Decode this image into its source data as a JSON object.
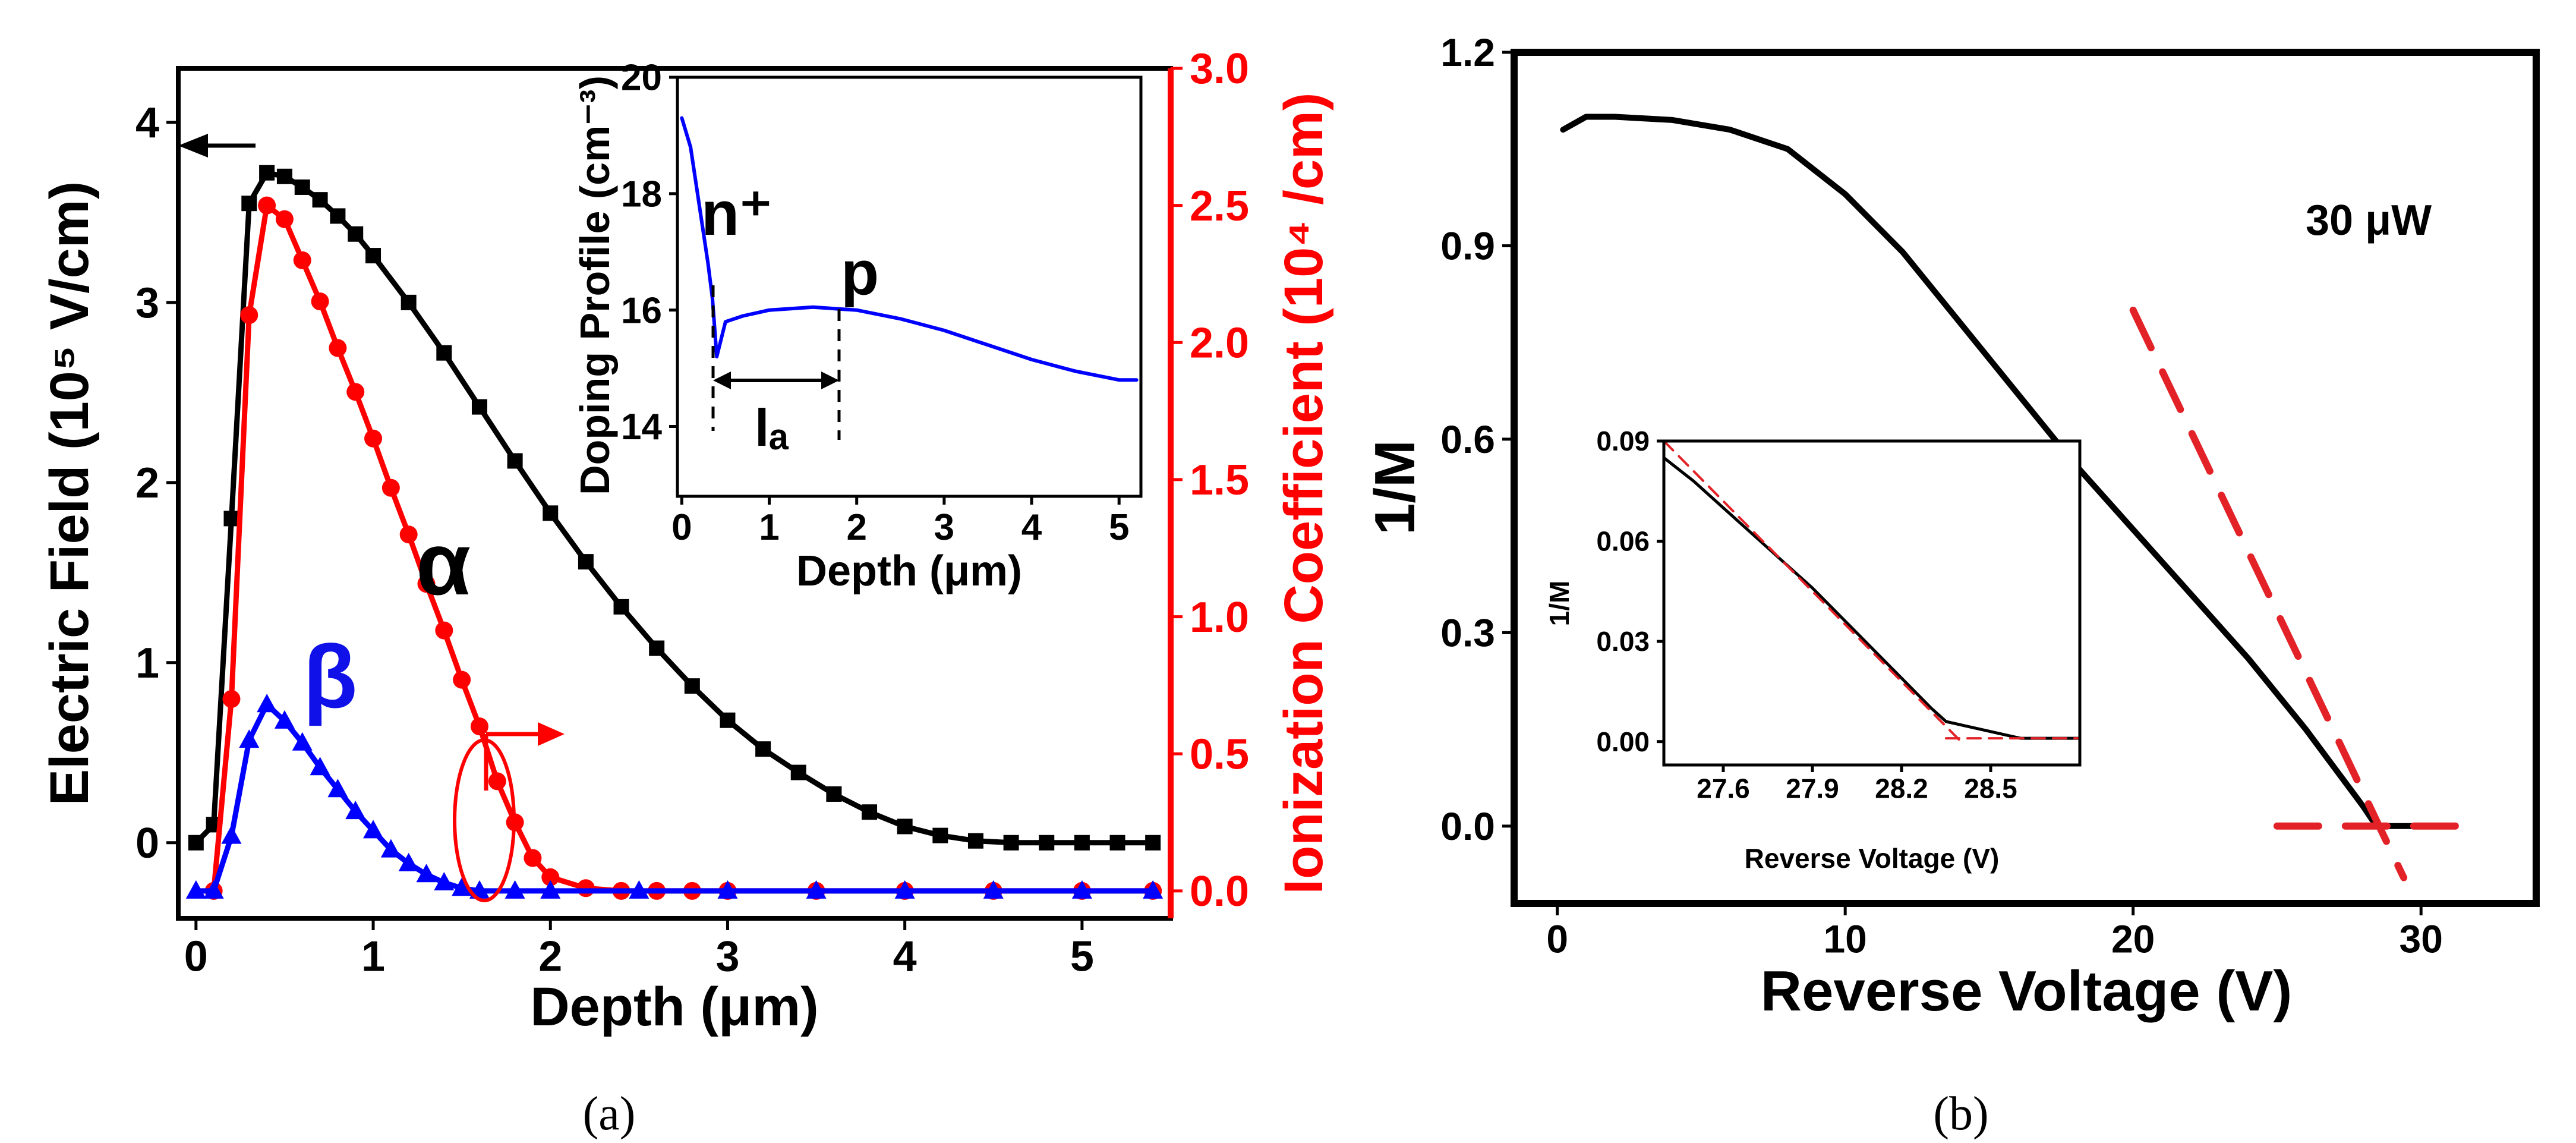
{
  "chart_data": [
    {
      "id": "a",
      "type": "line",
      "caption": "(a)",
      "xlabel": "Depth (μm)",
      "ylabel_left": "Electric Field (10⁵ V/cm)",
      "ylabel_right": "Ionization Coefficient (10⁴ /cm)",
      "xlim": [
        -0.1,
        5.5
      ],
      "ylim_left": [
        -0.42,
        4.3
      ],
      "ylim_right": [
        -0.1,
        3.0
      ],
      "xticks": [
        "0",
        "1",
        "2",
        "3",
        "4",
        "5"
      ],
      "yticks_left": [
        "0",
        "1",
        "2",
        "3",
        "4"
      ],
      "yticks_right": [
        "0.0",
        "0.5",
        "1.0",
        "1.5",
        "2.0",
        "2.5",
        "3.0"
      ],
      "annotations": [
        "α",
        "β"
      ],
      "series": [
        {
          "name": "Electric Field",
          "axis": "left",
          "color": "#000000",
          "marker": "square",
          "x": [
            0,
            0.1,
            0.2,
            0.3,
            0.4,
            0.5,
            0.6,
            0.7,
            0.8,
            0.9,
            1.0,
            1.2,
            1.4,
            1.6,
            1.8,
            2.0,
            2.2,
            2.4,
            2.6,
            2.8,
            3.0,
            3.2,
            3.4,
            3.6,
            3.8,
            4.0,
            4.2,
            4.4,
            4.6,
            4.8,
            5.0,
            5.2,
            5.4
          ],
          "values": [
            0.0,
            0.1,
            1.8,
            3.55,
            3.72,
            3.7,
            3.64,
            3.57,
            3.48,
            3.38,
            3.26,
            3.0,
            2.72,
            2.42,
            2.12,
            1.83,
            1.56,
            1.31,
            1.08,
            0.87,
            0.68,
            0.52,
            0.39,
            0.27,
            0.17,
            0.09,
            0.04,
            0.01,
            0.0,
            0.0,
            0.0,
            0.0,
            0.0
          ]
        },
        {
          "name": "α",
          "axis": "right",
          "color": "#ff0000",
          "marker": "circle",
          "x": [
            0.1,
            0.2,
            0.3,
            0.4,
            0.5,
            0.6,
            0.7,
            0.8,
            0.9,
            1.0,
            1.1,
            1.2,
            1.3,
            1.4,
            1.5,
            1.6,
            1.7,
            1.8,
            1.9,
            2.0,
            2.2,
            2.4,
            2.6,
            2.8,
            3.0,
            3.5,
            4.0,
            4.5,
            5.0,
            5.4
          ],
          "values": [
            0.0,
            0.7,
            2.1,
            2.5,
            2.45,
            2.3,
            2.15,
            1.98,
            1.82,
            1.65,
            1.47,
            1.3,
            1.12,
            0.95,
            0.77,
            0.6,
            0.4,
            0.25,
            0.12,
            0.05,
            0.01,
            0.0,
            0.0,
            0.0,
            0.0,
            0.0,
            0.0,
            0.0,
            0.0,
            0.0
          ]
        },
        {
          "name": "β",
          "axis": "right",
          "color": "#0000ff",
          "marker": "triangle",
          "x": [
            0,
            0.1,
            0.2,
            0.3,
            0.4,
            0.5,
            0.6,
            0.7,
            0.8,
            0.9,
            1.0,
            1.1,
            1.2,
            1.3,
            1.4,
            1.5,
            1.6,
            1.8,
            2.0,
            2.5,
            3.0,
            3.5,
            4.0,
            4.5,
            5.0,
            5.4
          ],
          "values": [
            0.0,
            0.0,
            0.2,
            0.55,
            0.68,
            0.62,
            0.54,
            0.45,
            0.37,
            0.29,
            0.22,
            0.15,
            0.1,
            0.06,
            0.03,
            0.01,
            0.0,
            0.0,
            0.0,
            0.0,
            0.0,
            0.0,
            0.0,
            0.0,
            0.0,
            0.0
          ]
        }
      ],
      "inset": {
        "type": "line",
        "xlabel": "Depth (μm)",
        "ylabel": "Doping Profile (cm⁻³)",
        "xlim": [
          -0.05,
          5.25
        ],
        "ylim": [
          12.8,
          20.0
        ],
        "xticks": [
          "0",
          "1",
          "2",
          "3",
          "4",
          "5"
        ],
        "yticks": [
          "14",
          "16",
          "18",
          "20"
        ],
        "labels": {
          "n_plus": "n⁺",
          "p": "p",
          "la": "lₐ"
        },
        "series": [
          {
            "name": "Doping Profile",
            "color": "#0000ff",
            "x": [
              0,
              0.1,
              0.2,
              0.3,
              0.35,
              0.4,
              0.5,
              0.7,
              1.0,
              1.5,
              2.0,
              2.5,
              3.0,
              3.5,
              4.0,
              4.5,
              5.0,
              5.2
            ],
            "values": [
              19.3,
              18.8,
              17.8,
              16.8,
              16.2,
              15.2,
              15.8,
              15.9,
              16.0,
              16.05,
              16.0,
              15.85,
              15.65,
              15.4,
              15.15,
              14.95,
              14.8,
              14.8
            ]
          }
        ]
      }
    },
    {
      "id": "b",
      "type": "line",
      "caption": "(b)",
      "xlabel": "Reverse Voltage (V)",
      "ylabel": "1/M",
      "xlim": [
        -1.5,
        34
      ],
      "ylim": [
        -0.12,
        1.2
      ],
      "xticks": [
        "0",
        "10",
        "20",
        "30"
      ],
      "yticks": [
        "0.0",
        "0.3",
        "0.6",
        "0.9",
        "1.2"
      ],
      "annotation": "30 μW",
      "series": [
        {
          "name": "1/M",
          "color": "#000000",
          "x": [
            0.2,
            1,
            2,
            4,
            6,
            8,
            10,
            12,
            14,
            16,
            18,
            20,
            22,
            24,
            26,
            27,
            27.5,
            28,
            28.3,
            28.5,
            29,
            30
          ],
          "values": [
            1.08,
            1.1,
            1.1,
            1.095,
            1.08,
            1.05,
            0.98,
            0.89,
            0.78,
            0.67,
            0.56,
            0.46,
            0.36,
            0.26,
            0.15,
            0.09,
            0.06,
            0.03,
            0.01,
            0.0,
            0.0,
            0.0
          ]
        },
        {
          "name": "Linear fit",
          "color": "#e32228",
          "dash": true,
          "x": [
            20,
            29.4
          ],
          "values": [
            0.8,
            -0.08
          ]
        },
        {
          "name": "Baseline",
          "color": "#e32228",
          "dash": true,
          "x": [
            25,
            32
          ],
          "values": [
            0.0,
            0.0
          ]
        }
      ],
      "inset": {
        "type": "line",
        "xlabel": "Reverse Voltage (V)",
        "ylabel": "1/M",
        "xlim": [
          27.4,
          28.8
        ],
        "ylim": [
          -0.007,
          0.09
        ],
        "xticks": [
          "27.6",
          "27.9",
          "28.2",
          "28.5"
        ],
        "yticks": [
          "0.00",
          "0.03",
          "0.06",
          "0.09"
        ],
        "series": [
          {
            "name": "1/M",
            "color": "#000000",
            "x": [
              27.4,
              27.5,
              27.6,
              27.7,
              27.8,
              27.9,
              28.0,
              28.1,
              28.2,
              28.3,
              28.35,
              28.4,
              28.5,
              28.6,
              28.7,
              28.8
            ],
            "values": [
              0.085,
              0.078,
              0.07,
              0.062,
              0.054,
              0.046,
              0.037,
              0.028,
              0.019,
              0.01,
              0.006,
              0.005,
              0.003,
              0.001,
              0.001,
              0.001
            ]
          },
          {
            "name": "Linear fit",
            "color": "#e32228",
            "dash": true,
            "x": [
              27.4,
              28.4
            ],
            "values": [
              0.09,
              0.0
            ]
          },
          {
            "name": "Baseline",
            "color": "#e32228",
            "dash": true,
            "x": [
              28.35,
              28.8
            ],
            "values": [
              0.001,
              0.001
            ]
          }
        ]
      }
    }
  ]
}
